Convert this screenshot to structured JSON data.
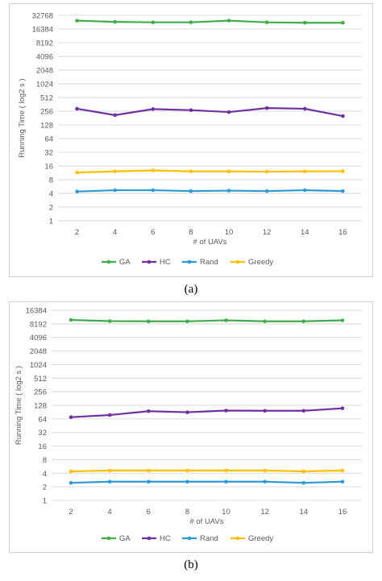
{
  "captions": [
    "(a)",
    "(b)"
  ],
  "chart_data": [
    {
      "type": "line",
      "title": "",
      "xlabel": "# of UAVs",
      "ylabel": "Running Time ( log2 s )",
      "y_scale": "log2",
      "x": [
        2,
        4,
        6,
        8,
        10,
        12,
        14,
        16
      ],
      "y_ticks": [
        "1",
        "2",
        "4",
        "8",
        "16",
        "32",
        "64",
        "128",
        "256",
        "512",
        "1024",
        "2048",
        "4096",
        "8192",
        "16384",
        "32768"
      ],
      "ylim": [
        1,
        32768
      ],
      "grid": true,
      "legend_position": "bottom",
      "series": [
        {
          "name": "GA",
          "color": "#3fae49",
          "values": [
            25000,
            23500,
            23000,
            23000,
            25000,
            23000,
            22500,
            22500
          ]
        },
        {
          "name": "HC",
          "color": "#7030a0",
          "values": [
            290,
            210,
            285,
            270,
            245,
            300,
            290,
            200
          ]
        },
        {
          "name": "Rand",
          "color": "#2e9bd6",
          "values": [
            4.4,
            4.7,
            4.7,
            4.5,
            4.6,
            4.5,
            4.7,
            4.5
          ]
        },
        {
          "name": "Greedy",
          "color": "#ffc000",
          "values": [
            11.5,
            12.2,
            12.8,
            12.2,
            12.2,
            12.0,
            12.2,
            12.3
          ]
        }
      ]
    },
    {
      "type": "line",
      "title": "",
      "xlabel": "# of UAVs",
      "ylabel": "Running Time ( log2 s )",
      "y_scale": "log2",
      "x": [
        2,
        4,
        6,
        8,
        10,
        12,
        14,
        16
      ],
      "y_ticks": [
        "1",
        "2",
        "4",
        "8",
        "16",
        "32",
        "64",
        "128",
        "256",
        "512",
        "1024",
        "2048",
        "4096",
        "8192",
        "16384"
      ],
      "ylim": [
        1,
        16384
      ],
      "grid": true,
      "legend_position": "bottom",
      "series": [
        {
          "name": "GA",
          "color": "#3fae49",
          "values": [
            10000,
            9400,
            9300,
            9300,
            9800,
            9300,
            9300,
            9800
          ]
        },
        {
          "name": "HC",
          "color": "#7030a0",
          "values": [
            70,
            78,
            95,
            90,
            98,
            97,
            97,
            110
          ]
        },
        {
          "name": "Rand",
          "color": "#2e9bd6",
          "values": [
            2.45,
            2.6,
            2.6,
            2.6,
            2.6,
            2.6,
            2.45,
            2.6
          ]
        },
        {
          "name": "Greedy",
          "color": "#ffc000",
          "values": [
            4.4,
            4.6,
            4.6,
            4.6,
            4.6,
            4.6,
            4.4,
            4.6
          ]
        }
      ]
    }
  ]
}
